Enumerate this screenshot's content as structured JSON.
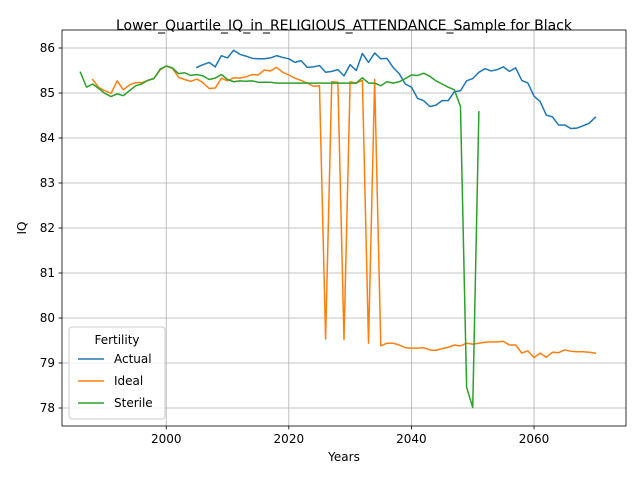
{
  "chart_data": {
    "type": "line",
    "title": "Lower_Quartile_IQ_in_RELIGIOUS_ATTENDANCE_Sample for Black",
    "xlabel": "Years",
    "ylabel": "IQ",
    "xlim": [
      1983,
      2075
    ],
    "ylim": [
      77.6,
      86.4
    ],
    "x_ticks": [
      2000,
      2020,
      2040,
      2060
    ],
    "y_ticks": [
      78,
      79,
      80,
      81,
      82,
      83,
      84,
      85,
      86
    ],
    "grid": true,
    "legend": {
      "title": "Fertility",
      "placement": "lower-left"
    },
    "series": [
      {
        "name": "Actual",
        "color": "#1f77b4",
        "points": [
          [
            2005,
            85.57
          ],
          [
            2006,
            85.63
          ],
          [
            2007,
            85.68
          ],
          [
            2008,
            85.58
          ],
          [
            2009,
            85.83
          ],
          [
            2010,
            85.78
          ],
          [
            2011,
            85.95
          ],
          [
            2012,
            85.86
          ],
          [
            2013,
            85.82
          ],
          [
            2014,
            85.77
          ],
          [
            2015,
            85.76
          ],
          [
            2016,
            85.76
          ],
          [
            2017,
            85.78
          ],
          [
            2018,
            85.83
          ],
          [
            2019,
            85.79
          ],
          [
            2020,
            85.76
          ],
          [
            2021,
            85.68
          ],
          [
            2022,
            85.72
          ],
          [
            2023,
            85.57
          ],
          [
            2024,
            85.58
          ],
          [
            2025,
            85.61
          ],
          [
            2026,
            85.46
          ],
          [
            2027,
            85.48
          ],
          [
            2028,
            85.52
          ],
          [
            2029,
            85.38
          ],
          [
            2030,
            85.63
          ],
          [
            2031,
            85.5
          ],
          [
            2032,
            85.88
          ],
          [
            2033,
            85.68
          ],
          [
            2034,
            85.89
          ],
          [
            2035,
            85.76
          ],
          [
            2036,
            85.77
          ],
          [
            2037,
            85.57
          ],
          [
            2038,
            85.43
          ],
          [
            2039,
            85.2
          ],
          [
            2040,
            85.13
          ],
          [
            2041,
            84.88
          ],
          [
            2042,
            84.83
          ],
          [
            2043,
            84.7
          ],
          [
            2044,
            84.73
          ],
          [
            2045,
            84.83
          ],
          [
            2046,
            84.83
          ],
          [
            2047,
            85.03
          ],
          [
            2048,
            85.05
          ],
          [
            2049,
            85.27
          ],
          [
            2050,
            85.32
          ],
          [
            2051,
            85.46
          ],
          [
            2052,
            85.54
          ],
          [
            2053,
            85.49
          ],
          [
            2054,
            85.52
          ],
          [
            2055,
            85.58
          ],
          [
            2056,
            85.48
          ],
          [
            2057,
            85.56
          ],
          [
            2058,
            85.28
          ],
          [
            2059,
            85.22
          ],
          [
            2060,
            84.93
          ],
          [
            2061,
            84.81
          ],
          [
            2062,
            84.51
          ],
          [
            2063,
            84.47
          ],
          [
            2064,
            84.29
          ],
          [
            2065,
            84.29
          ],
          [
            2066,
            84.21
          ],
          [
            2067,
            84.22
          ],
          [
            2068,
            84.27
          ],
          [
            2069,
            84.33
          ],
          [
            2070,
            84.46
          ]
        ]
      },
      {
        "name": "Ideal",
        "color": "#ff7f0e",
        "points": [
          [
            1988,
            85.3
          ],
          [
            1989,
            85.12
          ],
          [
            1990,
            85.05
          ],
          [
            1991,
            84.99
          ],
          [
            1992,
            85.27
          ],
          [
            1993,
            85.07
          ],
          [
            1994,
            85.18
          ],
          [
            1995,
            85.23
          ],
          [
            1996,
            85.23
          ],
          [
            1997,
            85.28
          ],
          [
            1998,
            85.33
          ],
          [
            1999,
            85.51
          ],
          [
            2000,
            85.6
          ],
          [
            2001,
            85.55
          ],
          [
            2002,
            85.35
          ],
          [
            2003,
            85.3
          ],
          [
            2004,
            85.26
          ],
          [
            2005,
            85.31
          ],
          [
            2006,
            85.23
          ],
          [
            2007,
            85.1
          ],
          [
            2008,
            85.11
          ],
          [
            2009,
            85.33
          ],
          [
            2010,
            85.27
          ],
          [
            2011,
            85.34
          ],
          [
            2012,
            85.33
          ],
          [
            2013,
            85.36
          ],
          [
            2014,
            85.41
          ],
          [
            2015,
            85.4
          ],
          [
            2016,
            85.51
          ],
          [
            2017,
            85.49
          ],
          [
            2018,
            85.57
          ],
          [
            2019,
            85.46
          ],
          [
            2020,
            85.4
          ],
          [
            2021,
            85.33
          ],
          [
            2022,
            85.28
          ],
          [
            2023,
            85.22
          ],
          [
            2024,
            85.15
          ],
          [
            2025,
            85.16
          ],
          [
            2026,
            79.53
          ],
          [
            2027,
            85.25
          ],
          [
            2028,
            85.24
          ],
          [
            2029,
            79.52
          ],
          [
            2030,
            85.25
          ],
          [
            2031,
            85.22
          ],
          [
            2032,
            85.28
          ],
          [
            2033,
            79.44
          ],
          [
            2034,
            85.3
          ],
          [
            2035,
            79.38
          ],
          [
            2036,
            79.44
          ],
          [
            2037,
            79.44
          ],
          [
            2038,
            79.4
          ],
          [
            2039,
            79.34
          ],
          [
            2040,
            79.33
          ],
          [
            2041,
            79.33
          ],
          [
            2042,
            79.34
          ],
          [
            2043,
            79.29
          ],
          [
            2044,
            79.28
          ],
          [
            2045,
            79.32
          ],
          [
            2046,
            79.35
          ],
          [
            2047,
            79.4
          ],
          [
            2048,
            79.38
          ],
          [
            2049,
            79.44
          ],
          [
            2050,
            79.42
          ],
          [
            2051,
            79.44
          ],
          [
            2052,
            79.46
          ],
          [
            2053,
            79.47
          ],
          [
            2054,
            79.47
          ],
          [
            2055,
            79.48
          ],
          [
            2056,
            79.4
          ],
          [
            2057,
            79.4
          ],
          [
            2058,
            79.22
          ],
          [
            2059,
            79.27
          ],
          [
            2060,
            79.12
          ],
          [
            2061,
            79.22
          ],
          [
            2062,
            79.13
          ],
          [
            2063,
            79.24
          ],
          [
            2064,
            79.23
          ],
          [
            2065,
            79.29
          ],
          [
            2066,
            79.26
          ],
          [
            2067,
            79.25
          ],
          [
            2068,
            79.25
          ],
          [
            2069,
            79.24
          ],
          [
            2070,
            79.22
          ]
        ]
      },
      {
        "name": "Sterile",
        "color": "#2ca02c",
        "points": [
          [
            1986,
            85.46
          ],
          [
            1987,
            85.13
          ],
          [
            1988,
            85.2
          ],
          [
            1989,
            85.1
          ],
          [
            1990,
            84.99
          ],
          [
            1991,
            84.92
          ],
          [
            1992,
            84.98
          ],
          [
            1993,
            84.94
          ],
          [
            1994,
            85.05
          ],
          [
            1995,
            85.16
          ],
          [
            1996,
            85.2
          ],
          [
            1997,
            85.28
          ],
          [
            1998,
            85.32
          ],
          [
            1999,
            85.53
          ],
          [
            2000,
            85.6
          ],
          [
            2001,
            85.56
          ],
          [
            2002,
            85.43
          ],
          [
            2003,
            85.45
          ],
          [
            2004,
            85.39
          ],
          [
            2005,
            85.41
          ],
          [
            2006,
            85.38
          ],
          [
            2007,
            85.3
          ],
          [
            2008,
            85.33
          ],
          [
            2009,
            85.41
          ],
          [
            2010,
            85.3
          ],
          [
            2011,
            85.25
          ],
          [
            2012,
            85.27
          ],
          [
            2013,
            85.26
          ],
          [
            2014,
            85.27
          ],
          [
            2015,
            85.24
          ],
          [
            2016,
            85.24
          ],
          [
            2017,
            85.24
          ],
          [
            2018,
            85.22
          ],
          [
            2019,
            85.22
          ],
          [
            2020,
            85.22
          ],
          [
            2021,
            85.22
          ],
          [
            2022,
            85.22
          ],
          [
            2023,
            85.22
          ],
          [
            2024,
            85.22
          ],
          [
            2025,
            85.22
          ],
          [
            2026,
            85.22
          ],
          [
            2027,
            85.22
          ],
          [
            2028,
            85.22
          ],
          [
            2029,
            85.22
          ],
          [
            2030,
            85.22
          ],
          [
            2031,
            85.22
          ],
          [
            2032,
            85.34
          ],
          [
            2033,
            85.22
          ],
          [
            2034,
            85.22
          ],
          [
            2035,
            85.16
          ],
          [
            2036,
            85.25
          ],
          [
            2037,
            85.22
          ],
          [
            2038,
            85.25
          ],
          [
            2039,
            85.32
          ],
          [
            2040,
            85.4
          ],
          [
            2041,
            85.39
          ],
          [
            2042,
            85.44
          ],
          [
            2043,
            85.37
          ],
          [
            2044,
            85.27
          ],
          [
            2045,
            85.2
          ],
          [
            2046,
            85.13
          ],
          [
            2047,
            85.07
          ],
          [
            2048,
            84.7
          ],
          [
            2049,
            78.46
          ],
          [
            2050,
            78.01
          ],
          [
            2051,
            84.58
          ]
        ]
      }
    ]
  }
}
